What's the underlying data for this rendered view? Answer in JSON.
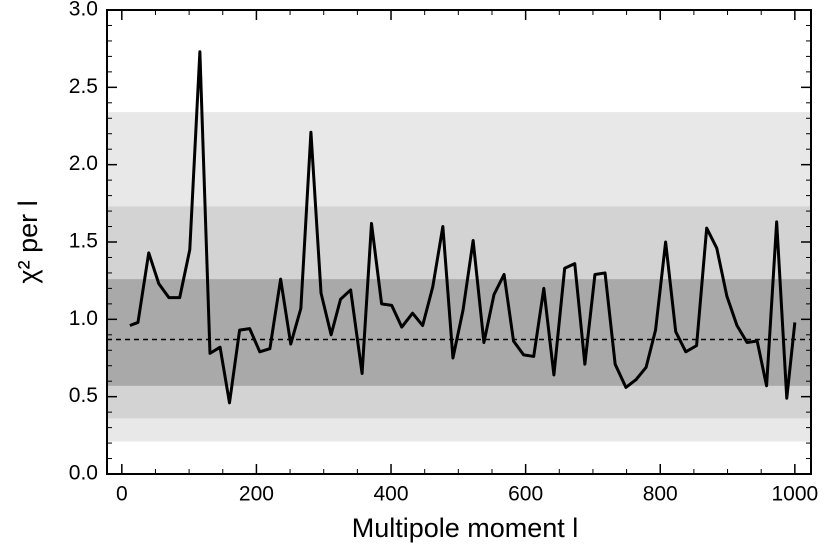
{
  "chart_data": {
    "type": "line",
    "xlabel": "Multipole moment  l",
    "ylabel": "χ² per l",
    "x": [
      12,
      24,
      40,
      55,
      70,
      86,
      101,
      116,
      131,
      146,
      160,
      175,
      190,
      205,
      220,
      236,
      251,
      266,
      281,
      296,
      311,
      325,
      340,
      357,
      371,
      386,
      401,
      416,
      432,
      447,
      462,
      477,
      492,
      507,
      522,
      538,
      553,
      568,
      582,
      597,
      612,
      627,
      642,
      658,
      673,
      688,
      703,
      718,
      733,
      749,
      764,
      779,
      793,
      808,
      823,
      838,
      854,
      869,
      884,
      899,
      914,
      929,
      944,
      958,
      973,
      988,
      1000
    ],
    "series": [
      {
        "color": "#000000",
        "values": [
          0.96,
          0.98,
          1.43,
          1.23,
          1.14,
          1.14,
          1.45,
          2.73,
          0.78,
          0.82,
          0.46,
          0.93,
          0.94,
          0.79,
          0.81,
          1.26,
          0.84,
          1.07,
          2.21,
          1.17,
          0.9,
          1.13,
          1.19,
          0.65,
          1.62,
          1.1,
          1.09,
          0.95,
          1.04,
          0.96,
          1.21,
          1.6,
          0.75,
          1.06,
          1.51,
          0.85,
          1.16,
          1.29,
          0.86,
          0.77,
          0.76,
          1.2,
          0.64,
          1.33,
          1.36,
          0.71,
          1.29,
          1.3,
          0.71,
          0.56,
          0.61,
          0.69,
          0.93,
          1.5,
          0.92,
          0.79,
          0.83,
          1.59,
          1.46,
          1.15,
          0.96,
          0.85,
          0.86,
          0.57,
          1.63,
          0.49,
          0.98
        ]
      }
    ],
    "bands": [
      {
        "lower": 0.21,
        "upper": 2.34,
        "color": "#e8e8e8"
      },
      {
        "lower": 0.36,
        "upper": 1.73,
        "color": "#d3d3d3"
      },
      {
        "lower": 0.57,
        "upper": 1.26,
        "color": "#a9a9a9"
      }
    ],
    "reference": 0.87,
    "xlim": [
      -22,
      1024
    ],
    "ylim": [
      0,
      3
    ],
    "xticks": [
      0,
      200,
      400,
      600,
      800,
      1000
    ],
    "xminorticks": [
      50,
      100,
      150,
      250,
      300,
      350,
      450,
      500,
      550,
      650,
      700,
      750,
      850,
      900,
      950
    ],
    "yticks": [
      {
        "value": 0,
        "label": "0.0"
      },
      {
        "value": 0.5,
        "label": "0.5"
      },
      {
        "value": 1,
        "label": "1.0"
      },
      {
        "value": 1.5,
        "label": "1.5"
      },
      {
        "value": 2,
        "label": "2.0"
      },
      {
        "value": 2.5,
        "label": "2.5"
      },
      {
        "value": 3,
        "label": "3.0"
      }
    ],
    "yminorticks": [
      0.1,
      0.2,
      0.3,
      0.4,
      0.6,
      0.7,
      0.8,
      0.9,
      1.1,
      1.2,
      1.3,
      1.4,
      1.6,
      1.7,
      1.8,
      1.9,
      2.1,
      2.2,
      2.3,
      2.4,
      2.6,
      2.7,
      2.8,
      2.9
    ]
  }
}
